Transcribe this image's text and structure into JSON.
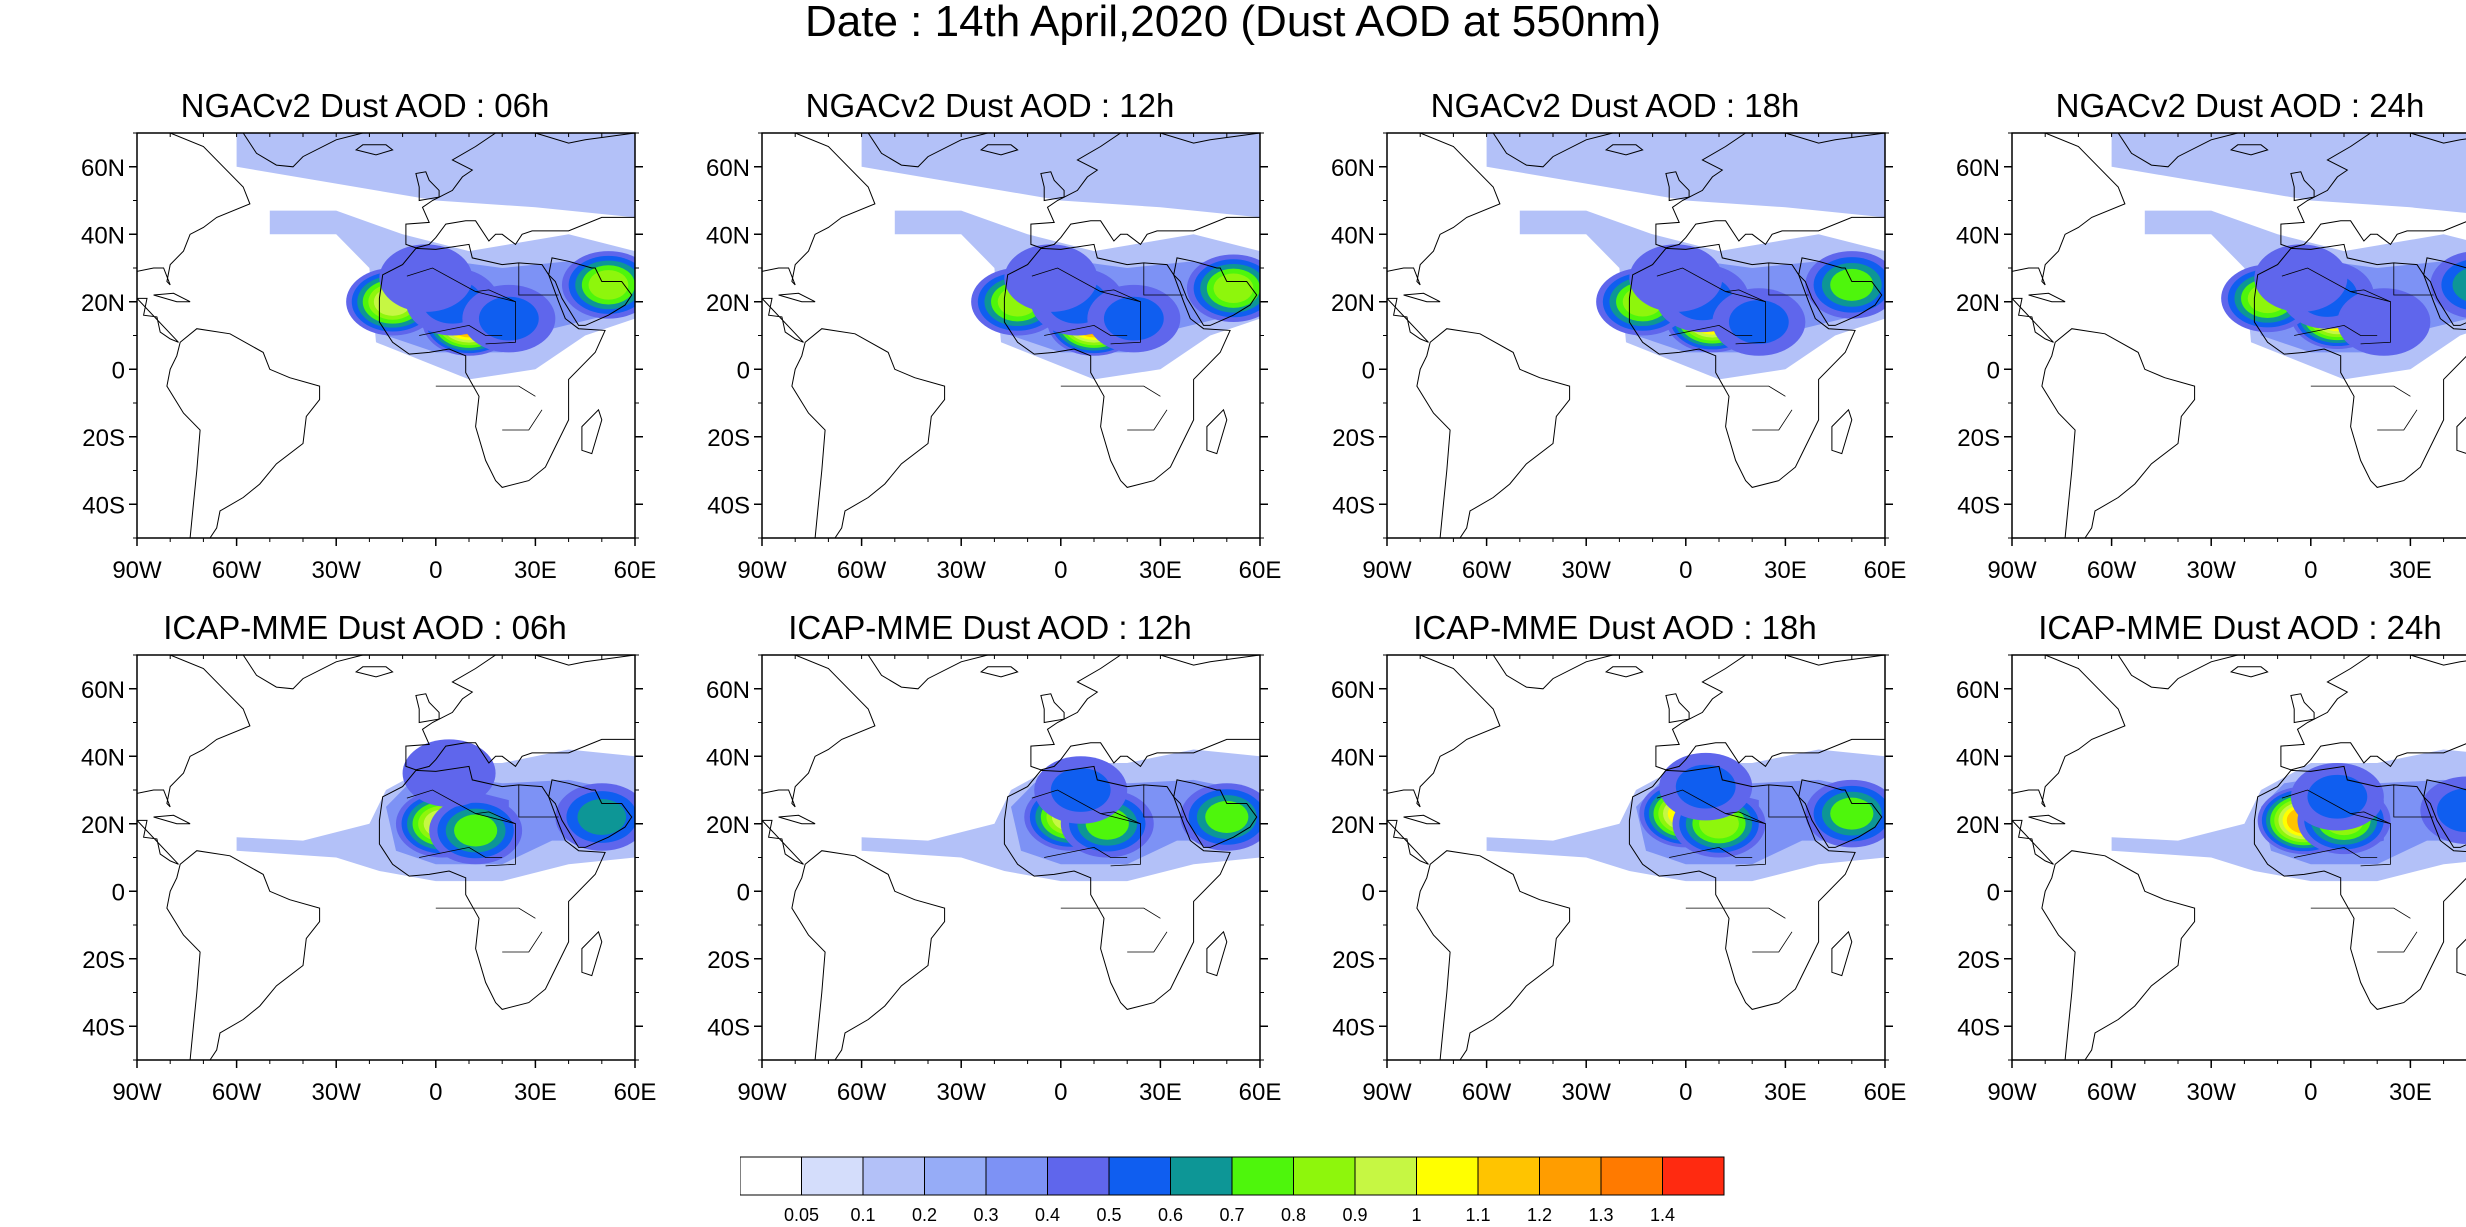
{
  "title": "Date : 14th April,2020 (Dust AOD at 550nm)",
  "panels": [
    {
      "title": "NGACv2 Dust AOD : 06h",
      "model": "NGACv2",
      "hour": "06h",
      "blobs": [
        [
          10,
          14,
          1.25
        ],
        [
          -13,
          20,
          0.9
        ],
        [
          5,
          20,
          0.55
        ],
        [
          52,
          25,
          0.8
        ],
        [
          -3,
          27,
          0.4
        ],
        [
          22,
          15,
          0.5
        ]
      ]
    },
    {
      "title": "NGACv2 Dust AOD : 12h",
      "model": "NGACv2",
      "hour": "12h",
      "blobs": [
        [
          10,
          14,
          1.25
        ],
        [
          -13,
          20,
          0.85
        ],
        [
          5,
          20,
          0.55
        ],
        [
          52,
          24,
          0.8
        ],
        [
          -3,
          27,
          0.4
        ],
        [
          22,
          15,
          0.5
        ]
      ]
    },
    {
      "title": "NGACv2 Dust AOD : 18h",
      "model": "NGACv2",
      "hour": "18h",
      "blobs": [
        [
          8,
          15,
          1.15
        ],
        [
          -13,
          20,
          0.85
        ],
        [
          5,
          21,
          0.55
        ],
        [
          50,
          25,
          0.75
        ],
        [
          -3,
          27,
          0.4
        ],
        [
          22,
          14,
          0.5
        ]
      ]
    },
    {
      "title": "NGACv2 Dust AOD : 24h",
      "model": "NGACv2",
      "hour": "24h",
      "blobs": [
        [
          8,
          16,
          1.1
        ],
        [
          -13,
          21,
          0.85
        ],
        [
          5,
          22,
          0.55
        ],
        [
          50,
          25,
          0.6
        ],
        [
          -3,
          27,
          0.4
        ],
        [
          22,
          14,
          0.45
        ]
      ]
    },
    {
      "title": "ICAP-MME Dust AOD : 06h",
      "model": "ICAP-MME",
      "hour": "06h",
      "blobs": [
        [
          2,
          20,
          0.9
        ],
        [
          12,
          18,
          0.75
        ],
        [
          50,
          22,
          0.65
        ],
        [
          4,
          35,
          0.45
        ],
        [
          -20,
          14,
          0.3
        ]
      ]
    },
    {
      "title": "ICAP-MME Dust AOD : 12h",
      "model": "ICAP-MME",
      "hour": "12h",
      "blobs": [
        [
          3,
          22,
          0.95
        ],
        [
          14,
          20,
          0.75
        ],
        [
          50,
          22,
          0.7
        ],
        [
          6,
          30,
          0.5
        ],
        [
          -20,
          14,
          0.3
        ]
      ]
    },
    {
      "title": "ICAP-MME Dust AOD : 18h",
      "model": "ICAP-MME",
      "hour": "18h",
      "blobs": [
        [
          0,
          23,
          1.0
        ],
        [
          10,
          20,
          0.8
        ],
        [
          50,
          23,
          0.7
        ],
        [
          6,
          31,
          0.55
        ],
        [
          -22,
          14,
          0.3
        ]
      ]
    },
    {
      "title": "ICAP-MME Dust AOD : 24h",
      "model": "ICAP-MME",
      "hour": "24h",
      "blobs": [
        [
          -2,
          21,
          1.15
        ],
        [
          10,
          21,
          0.85
        ],
        [
          47,
          24,
          0.55
        ],
        [
          8,
          28,
          0.55
        ],
        [
          -25,
          13,
          0.3
        ]
      ]
    }
  ],
  "axes": {
    "lon_ticks": [
      "90W",
      "60W",
      "30W",
      "0",
      "30E",
      "60E"
    ],
    "lon_values": [
      -90,
      -60,
      -30,
      0,
      30,
      60
    ],
    "lat_ticks": [
      "60N",
      "40N",
      "20N",
      "0",
      "20S",
      "40S"
    ],
    "lat_values": [
      60,
      40,
      20,
      0,
      -20,
      -40
    ],
    "lon_range": [
      -90,
      60
    ],
    "lat_range": [
      -50,
      70
    ]
  },
  "colorbar": {
    "labels": [
      "0.05",
      "0.1",
      "0.2",
      "0.3",
      "0.4",
      "0.5",
      "0.6",
      "0.7",
      "0.8",
      "0.9",
      "1",
      "1.1",
      "1.2",
      "1.3",
      "1.4"
    ],
    "levels": [
      0.05,
      0.1,
      0.2,
      0.3,
      0.4,
      0.5,
      0.6,
      0.7,
      0.8,
      0.9,
      1.0,
      1.1,
      1.2,
      1.3,
      1.4
    ],
    "colors": [
      "#ffffff",
      "#d4ddfb",
      "#b3c1f8",
      "#96acf7",
      "#7d92f5",
      "#5f66ec",
      "#0f5ef0",
      "#0d9696",
      "#4ef60c",
      "#8ef60c",
      "#c6f743",
      "#ffff00",
      "#ffc400",
      "#ff9d00",
      "#ff7a00",
      "#ff2a10"
    ]
  }
}
